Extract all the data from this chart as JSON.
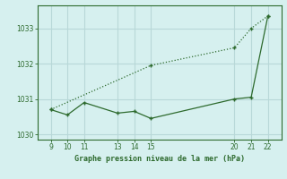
{
  "x_actual": [
    9,
    10,
    11,
    13,
    14,
    15,
    20,
    21,
    22
  ],
  "y_actual": [
    1030.7,
    1030.55,
    1030.9,
    1030.6,
    1030.65,
    1030.45,
    1031.0,
    1031.05,
    1033.35
  ],
  "x_trend": [
    9,
    15,
    20,
    21,
    22
  ],
  "y_trend": [
    1030.7,
    1031.95,
    1032.45,
    1033.0,
    1033.35
  ],
  "line_color": "#2d6a2d",
  "bg_color": "#d6f0ef",
  "grid_color": "#b8d8d8",
  "text_color": "#2d6a2d",
  "xticks": [
    9,
    10,
    11,
    13,
    14,
    15,
    20,
    21,
    22
  ],
  "yticks": [
    1030,
    1031,
    1032,
    1033
  ],
  "ylim": [
    1029.85,
    1033.65
  ],
  "xlim": [
    8.2,
    22.8
  ],
  "xlabel": "Graphe pression niveau de la mer (hPa)",
  "markersize": 3.5
}
